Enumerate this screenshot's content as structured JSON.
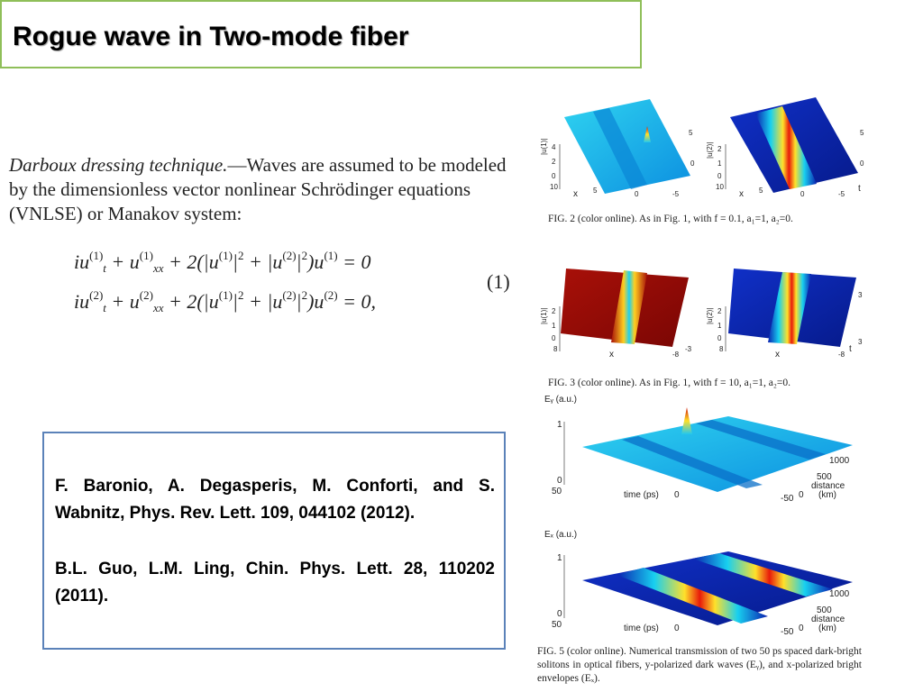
{
  "slide": {
    "title": "Rogue wave in Two-mode fiber"
  },
  "intro": {
    "lead": "Darboux dressing technique.",
    "text": "—Waves are assumed to be modeled by the dimensionless vector nonlinear Schrödinger equations (VNLSE) or Manakov system:"
  },
  "equation": {
    "number": "(1)"
  },
  "references": {
    "ref1": "F. Baronio, A. Degasperis, M. Conforti, and S. Wabnitz, Phys. Rev. Lett. 109, 044102 (2012).",
    "ref2": "B.L. Guo, L.M. Ling, Chin. Phys. Lett. 28, 110202 (2011)."
  },
  "figures": {
    "fig2_caption": "FIG. 2 (color online).   As in Fig. 1, with f = 0.1, a₁=1, a₂=0.",
    "fig3_caption": "FIG. 3 (color online).   As in Fig. 1, with f = 10, a₁=1, a₂=0.",
    "fig5_caption": "FIG. 5 (color online).   Numerical transmission of two 50 ps spaced dark-bright solitons in optical fibers, y-polarized dark waves (Eᵧ), and x-polarized bright envelopes (Eₓ).",
    "ylabel_u1": "|u(1)|",
    "ylabel_u2": "|u(2)|",
    "x_label": "x",
    "t_label": "t",
    "fig5_ylabel_top": "Eᵧ (a.u.)",
    "fig5_ylabel_bottom": "Eₓ (a.u.)",
    "time_label": "time (ps)",
    "distance_label": "distance",
    "km_label": "(km)",
    "tick_0": "0",
    "tick_1": "1",
    "tick_2": "2",
    "tick_3": "3",
    "tick_4": "4",
    "tick_5": "5",
    "tick_10": "10",
    "tick_m5": "-5",
    "tick_8": "8",
    "tick_m8": "-8",
    "tick_m3": "-3",
    "tick_50": "50",
    "tick_m50": "-50",
    "tick_500": "500",
    "tick_1000": "1000"
  },
  "colors": {
    "title_border": "#8fbf59",
    "ref_border": "#5b82b9"
  }
}
